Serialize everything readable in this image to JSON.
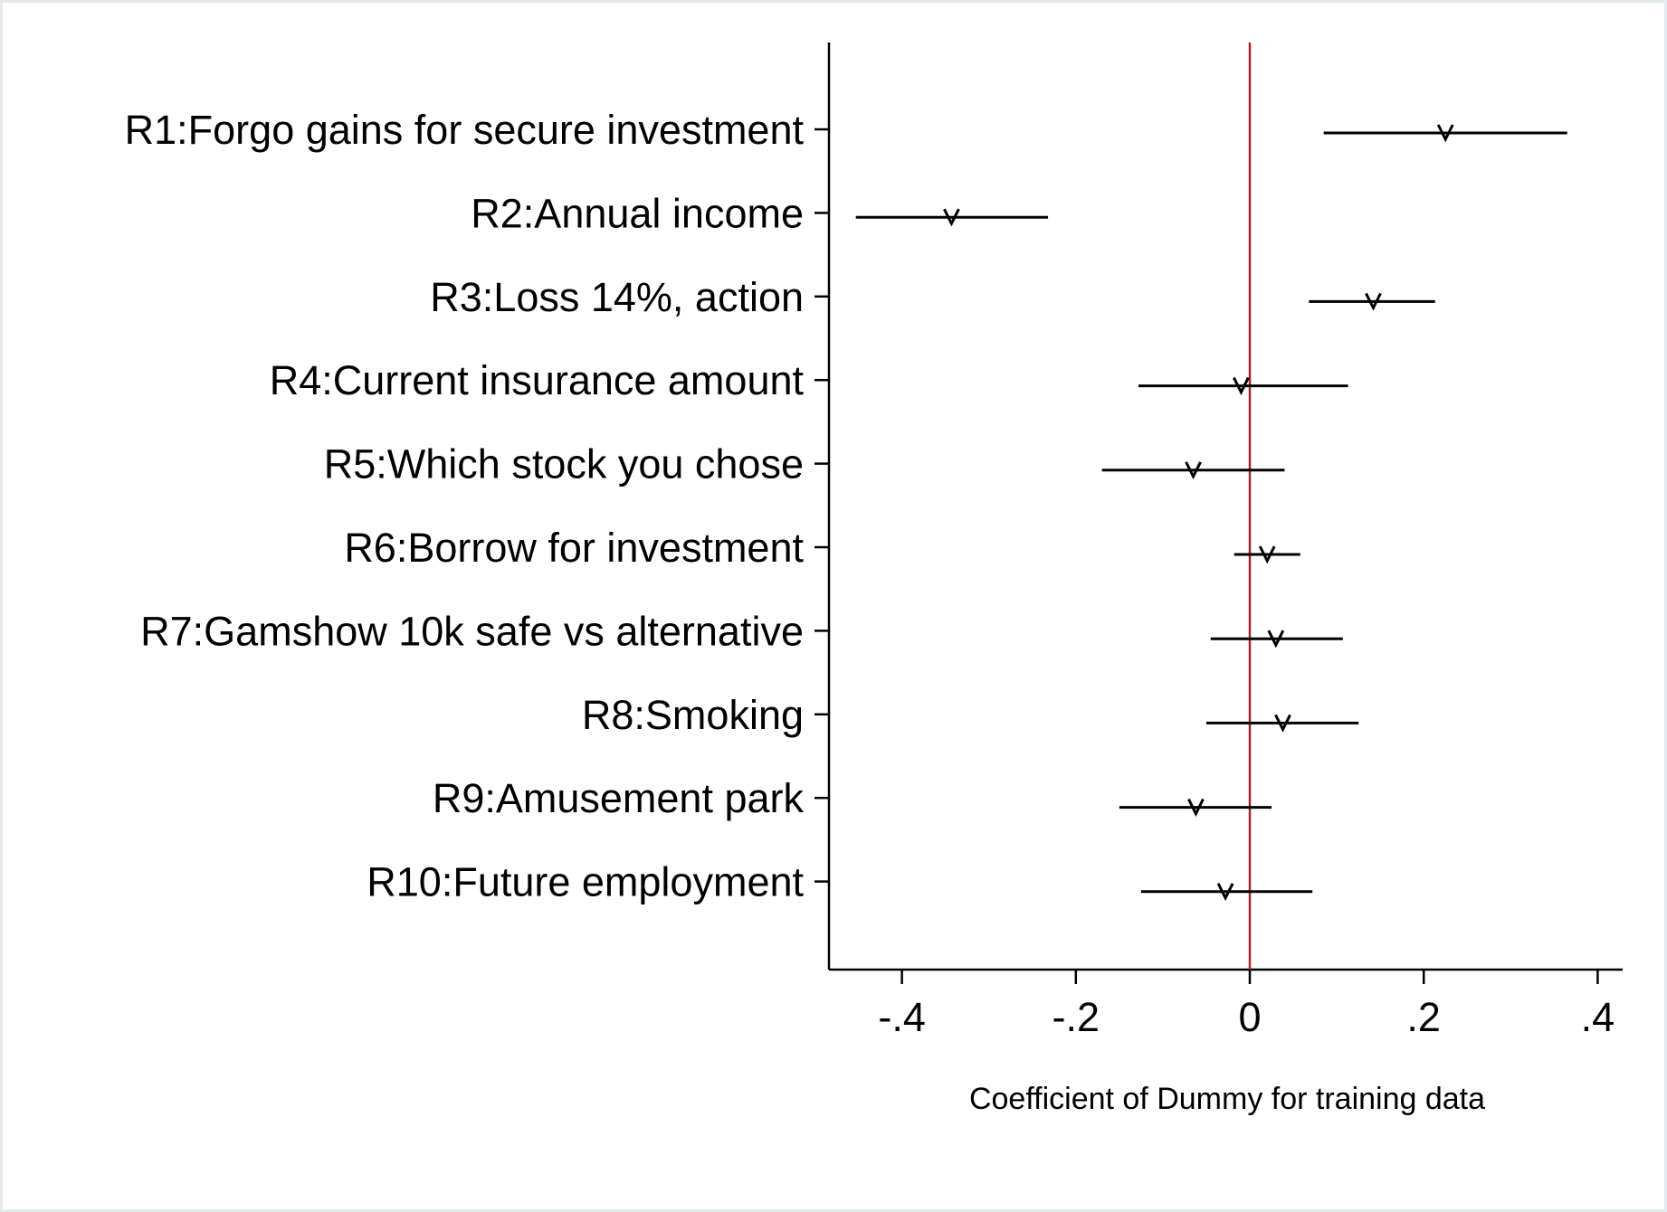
{
  "chart_data": {
    "type": "scatter",
    "subtype": "coefficient-plot",
    "orientation": "horizontal",
    "xlabel": "Coefficient of Dummy for training data",
    "xlim": [
      -0.48,
      0.43
    ],
    "xticks": [
      -0.4,
      -0.2,
      0,
      0.2,
      0.4
    ],
    "xtick_labels": [
      "-.4",
      "-.2",
      "0",
      ".2",
      ".4"
    ],
    "reference_line": {
      "x": 0,
      "color": "#b22222"
    },
    "marker": "triangle-down",
    "grid": false,
    "legend": "none",
    "categories": [
      "R1:Forgo gains for secure investment",
      "R2:Annual income",
      "R3:Loss 14%, action",
      "R4:Current insurance amount",
      "R5:Which stock you chose",
      "R6:Borrow for investment",
      "R7:Gamshow 10k safe vs alternative",
      "R8:Smoking",
      "R9:Amusement park",
      "R10:Future employment"
    ],
    "estimates": [
      0.225,
      -0.343,
      0.142,
      -0.01,
      -0.065,
      0.02,
      0.03,
      0.038,
      -0.062,
      -0.028
    ],
    "ci_lower": [
      0.085,
      -0.453,
      0.068,
      -0.128,
      -0.17,
      -0.018,
      -0.045,
      -0.05,
      -0.15,
      -0.125
    ],
    "ci_upper": [
      0.365,
      -0.232,
      0.213,
      0.113,
      0.04,
      0.058,
      0.107,
      0.125,
      0.025,
      0.072
    ]
  }
}
